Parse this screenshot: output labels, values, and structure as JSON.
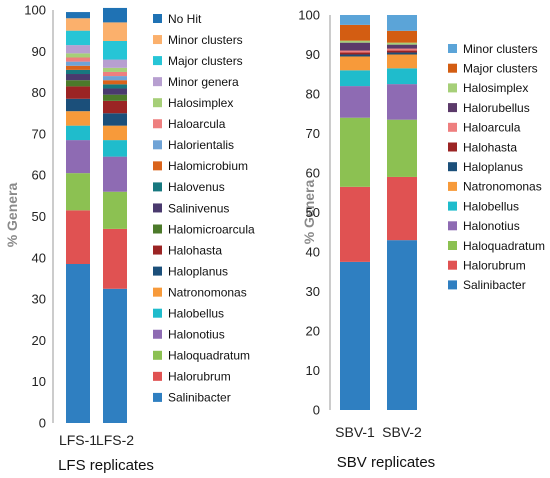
{
  "colors": {
    "Salinibacter": "#2f7fc1",
    "Halorubrum": "#e05252",
    "Haloquadratum": "#8cc152",
    "Halonotius": "#8e6bb3",
    "Halobellus": "#1fbccc",
    "Natronomonas": "#f79a3a",
    "Haloplanus": "#1b4f7a",
    "Halohasta": "#9b2424",
    "Halomicroarcula": "#4c7a2a",
    "Salinivenus": "#4a3a6e",
    "Halovenus": "#17787f",
    "Halomicrobium": "#d9631b",
    "Halorientalis": "#6fa3d6",
    "Haloarcula": "#ee7f7f",
    "Halosimplex": "#a6cf78",
    "Minor genera": "#b79fd0",
    "Major clusters": "#26c5d6",
    "Minor clusters": "#fbb06c",
    "No Hit": "#1f72b4",
    "Halorubellus": "#5b3a6a",
    "Major clusters (SBV)": "#d35d12",
    "Minor clusters (SBV)": "#5ba4d8"
  },
  "chart_data": [
    {
      "type": "bar",
      "stacked": true,
      "title": "",
      "xlabel": "LFS replicates",
      "ylabel": "% Genera",
      "ylim": [
        0,
        100
      ],
      "yticks": [
        "0",
        "10",
        "20",
        "30",
        "40",
        "50",
        "60",
        "70",
        "80",
        "90",
        "100"
      ],
      "categories": [
        "LFS-1",
        "LFS-2"
      ],
      "legend": "right",
      "series": [
        {
          "name": "Salinibacter",
          "values": [
            38.5,
            32.5
          ]
        },
        {
          "name": "Halorubrum",
          "values": [
            13,
            14.5
          ]
        },
        {
          "name": "Haloquadratum",
          "values": [
            9,
            9
          ]
        },
        {
          "name": "Halonotius",
          "values": [
            8,
            8.5
          ]
        },
        {
          "name": "Halobellus",
          "values": [
            3.5,
            4
          ]
        },
        {
          "name": "Natronomonas",
          "values": [
            3.5,
            3.5
          ]
        },
        {
          "name": "Haloplanus",
          "values": [
            3,
            3
          ]
        },
        {
          "name": "Halohasta",
          "values": [
            3,
            3
          ]
        },
        {
          "name": "Halomicroarcula",
          "values": [
            1.5,
            1.5
          ]
        },
        {
          "name": "Salinivenus",
          "values": [
            1.5,
            1.5
          ]
        },
        {
          "name": "Halovenus",
          "values": [
            1,
            1
          ]
        },
        {
          "name": "Halomicrobium",
          "values": [
            1,
            1
          ]
        },
        {
          "name": "Halorientalis",
          "values": [
            1,
            1
          ]
        },
        {
          "name": "Haloarcula",
          "values": [
            1,
            1
          ]
        },
        {
          "name": "Halosimplex",
          "values": [
            1,
            1
          ]
        },
        {
          "name": "Minor genera",
          "values": [
            2,
            2
          ]
        },
        {
          "name": "Major clusters",
          "values": [
            3.5,
            4.5
          ]
        },
        {
          "name": "Minor clusters",
          "values": [
            3,
            4.5
          ]
        },
        {
          "name": "No Hit",
          "values": [
            1.5,
            3.5
          ]
        }
      ]
    },
    {
      "type": "bar",
      "stacked": true,
      "title": "",
      "xlabel": "SBV replicates",
      "ylabel": "% Genera",
      "ylim": [
        0,
        100
      ],
      "yticks": [
        "0",
        "10",
        "20",
        "30",
        "40",
        "50",
        "60",
        "70",
        "80",
        "90",
        "100"
      ],
      "categories": [
        "SBV-1",
        "SBV-2"
      ],
      "legend": "right",
      "series": [
        {
          "name": "Salinibacter",
          "values": [
            37.5,
            43
          ]
        },
        {
          "name": "Halorubrum",
          "values": [
            19,
            16
          ]
        },
        {
          "name": "Haloquadratum",
          "values": [
            17.5,
            14.5
          ]
        },
        {
          "name": "Halonotius",
          "values": [
            8,
            9
          ]
        },
        {
          "name": "Halobellus",
          "values": [
            4,
            4
          ]
        },
        {
          "name": "Natronomonas",
          "values": [
            3.5,
            3.5
          ]
        },
        {
          "name": "Haloplanus",
          "values": [
            0.5,
            0.5
          ]
        },
        {
          "name": "Halohasta",
          "values": [
            0.5,
            0.5
          ]
        },
        {
          "name": "Haloarcula",
          "values": [
            0.5,
            0.5
          ]
        },
        {
          "name": "Halorubellus",
          "values": [
            2,
            1
          ]
        },
        {
          "name": "Halosimplex",
          "values": [
            0.5,
            0.5
          ]
        },
        {
          "name": "Major clusters",
          "values": [
            4,
            3
          ]
        },
        {
          "name": "Minor clusters",
          "values": [
            2.5,
            4
          ]
        }
      ]
    }
  ],
  "legends": [
    {
      "items": [
        "No Hit",
        "Minor clusters",
        "Major clusters",
        "Minor genera",
        "Halosimplex",
        "Haloarcula",
        "Halorientalis",
        "Halomicrobium",
        "Halovenus",
        "Salinivenus",
        "Halomicroarcula",
        "Halohasta",
        "Haloplanus",
        "Natronomonas",
        "Halobellus",
        "Halonotius",
        "Haloquadratum",
        "Halorubrum",
        "Salinibacter"
      ]
    },
    {
      "items": [
        "Minor clusters",
        "Major clusters",
        "Halosimplex",
        "Halorubellus",
        "Haloarcula",
        "Halohasta",
        "Haloplanus",
        "Natronomonas",
        "Halobellus",
        "Halonotius",
        "Haloquadratum",
        "Halorubrum",
        "Salinibacter"
      ]
    }
  ]
}
